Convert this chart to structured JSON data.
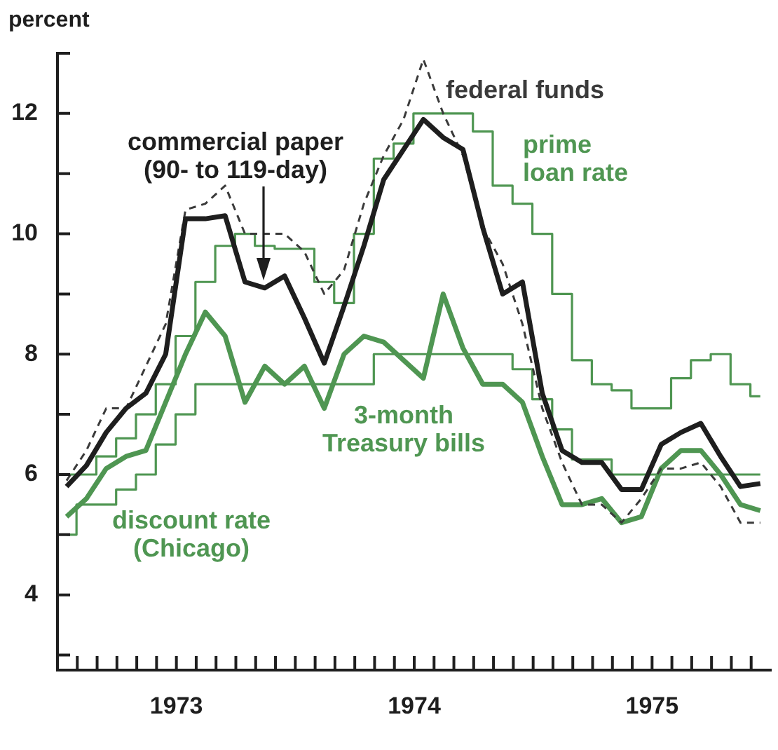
{
  "chart_data": {
    "type": "line",
    "ylabel": "percent",
    "x": [
      "1973-01-15",
      "1973-02-15",
      "1973-03-15",
      "1973-04-15",
      "1973-05-15",
      "1973-06-15",
      "1973-07-15",
      "1973-08-15",
      "1973-09-15",
      "1973-10-15",
      "1973-11-15",
      "1973-12-15",
      "1974-01-15",
      "1974-02-15",
      "1974-03-15",
      "1974-04-15",
      "1974-05-15",
      "1974-06-15",
      "1974-07-15",
      "1974-08-15",
      "1974-09-15",
      "1974-10-15",
      "1974-11-15",
      "1974-12-15",
      "1975-01-15",
      "1975-02-15",
      "1975-03-15",
      "1975-04-15",
      "1975-05-15",
      "1975-06-15",
      "1975-07-15",
      "1975-08-15",
      "1975-09-15",
      "1975-10-15",
      "1975-11-15",
      "1975-12-15"
    ],
    "series": [
      {
        "name": "commercial paper (90- to 119-day)",
        "color": "#1e1e1e",
        "values": [
          5.8,
          6.15,
          6.7,
          7.1,
          7.35,
          8.0,
          10.25,
          10.25,
          10.3,
          9.2,
          9.1,
          9.3,
          8.6,
          7.85,
          8.8,
          9.8,
          10.9,
          11.4,
          11.9,
          11.6,
          11.4,
          10.1,
          9.0,
          9.2,
          7.35,
          6.4,
          6.2,
          6.2,
          5.75,
          5.75,
          6.5,
          6.7,
          6.85,
          6.3,
          5.8,
          5.85
        ]
      },
      {
        "name": "federal funds",
        "line_style": "dashed",
        "color": "#3a3a3a",
        "values": [
          5.9,
          6.4,
          7.1,
          7.1,
          7.8,
          8.5,
          10.4,
          10.5,
          10.8,
          10.0,
          10.0,
          10.0,
          9.7,
          9.0,
          9.4,
          10.5,
          11.3,
          11.9,
          12.9,
          12.0,
          11.3,
          10.1,
          9.5,
          8.5,
          7.1,
          6.2,
          5.5,
          5.5,
          5.2,
          5.6,
          6.1,
          6.1,
          6.2,
          5.8,
          5.2,
          5.2
        ]
      },
      {
        "name": "prime loan rate",
        "type": "step",
        "color": "#4f9652",
        "values": [
          6.0,
          6.0,
          6.3,
          6.6,
          7.0,
          7.5,
          8.3,
          9.2,
          9.8,
          10.0,
          9.8,
          9.75,
          9.75,
          9.2,
          8.85,
          10.0,
          11.25,
          11.5,
          12.0,
          12.0,
          12.0,
          11.7,
          10.8,
          10.5,
          10.0,
          9.0,
          7.9,
          7.5,
          7.4,
          7.1,
          7.1,
          7.6,
          7.9,
          8.0,
          7.5,
          7.3
        ]
      },
      {
        "name": "3-month Treasury bills",
        "color": "#4f9652",
        "values": [
          5.3,
          5.6,
          6.1,
          6.3,
          6.4,
          7.2,
          8.0,
          8.7,
          8.3,
          7.2,
          7.8,
          7.5,
          7.8,
          7.1,
          8.0,
          8.3,
          8.2,
          7.9,
          7.6,
          9.0,
          8.1,
          7.5,
          7.5,
          7.2,
          6.3,
          5.5,
          5.5,
          5.6,
          5.2,
          5.3,
          6.1,
          6.4,
          6.4,
          6.0,
          5.5,
          5.4
        ]
      },
      {
        "name": "discount rate (Chicago)",
        "type": "step",
        "color": "#4f9652",
        "values": [
          5.0,
          5.5,
          5.5,
          5.75,
          6.0,
          6.5,
          7.0,
          7.5,
          7.5,
          7.5,
          7.5,
          7.5,
          7.5,
          7.5,
          7.5,
          7.5,
          8.0,
          8.0,
          8.0,
          8.0,
          8.0,
          8.0,
          8.0,
          7.75,
          7.25,
          6.75,
          6.25,
          6.25,
          6.0,
          6.0,
          6.0,
          6.0,
          6.0,
          6.0,
          6.0,
          6.0
        ]
      }
    ],
    "xlim": [
      "1973-01-01",
      "1976-01-01"
    ],
    "xticks": [
      {
        "value": "1973-01-01",
        "label": null
      },
      {
        "value": "1973-02-01",
        "label": null
      },
      {
        "value": "1973-03-01",
        "label": null
      },
      {
        "value": "1973-04-01",
        "label": null
      },
      {
        "value": "1973-05-01",
        "label": null
      },
      {
        "value": "1973-06-01",
        "label": null
      },
      {
        "value": "1973-07-01",
        "label": "1973"
      },
      {
        "value": "1973-08-01",
        "label": null
      },
      {
        "value": "1973-09-01",
        "label": null
      },
      {
        "value": "1973-10-01",
        "label": null
      },
      {
        "value": "1973-11-01",
        "label": null
      },
      {
        "value": "1973-12-01",
        "label": null
      },
      {
        "value": "1974-01-01",
        "label": null
      },
      {
        "value": "1974-02-01",
        "label": null
      },
      {
        "value": "1974-03-01",
        "label": null
      },
      {
        "value": "1974-04-01",
        "label": null
      },
      {
        "value": "1974-05-01",
        "label": null
      },
      {
        "value": "1974-06-01",
        "label": null
      },
      {
        "value": "1974-07-01",
        "label": "1974"
      },
      {
        "value": "1974-08-01",
        "label": null
      },
      {
        "value": "1974-09-01",
        "label": null
      },
      {
        "value": "1974-10-01",
        "label": null
      },
      {
        "value": "1974-11-01",
        "label": null
      },
      {
        "value": "1974-12-01",
        "label": null
      },
      {
        "value": "1975-01-01",
        "label": null
      },
      {
        "value": "1975-02-01",
        "label": null
      },
      {
        "value": "1975-03-01",
        "label": null
      },
      {
        "value": "1975-04-01",
        "label": null
      },
      {
        "value": "1975-05-01",
        "label": null
      },
      {
        "value": "1975-06-01",
        "label": null
      },
      {
        "value": "1975-07-01",
        "label": "1975"
      },
      {
        "value": "1975-08-01",
        "label": null
      },
      {
        "value": "1975-09-01",
        "label": null
      },
      {
        "value": "1975-10-01",
        "label": null
      },
      {
        "value": "1975-11-01",
        "label": null
      },
      {
        "value": "1975-12-01",
        "label": null
      }
    ],
    "ylim": [
      2.75,
      13
    ],
    "yticks": [
      {
        "value": 3,
        "label": null
      },
      4,
      {
        "value": 5,
        "label": null
      },
      6,
      {
        "value": 7,
        "label": null
      },
      8,
      {
        "value": 9,
        "label": null
      },
      10,
      {
        "value": 11,
        "label": null
      },
      12,
      {
        "value": 13,
        "label": null
      }
    ]
  }
}
